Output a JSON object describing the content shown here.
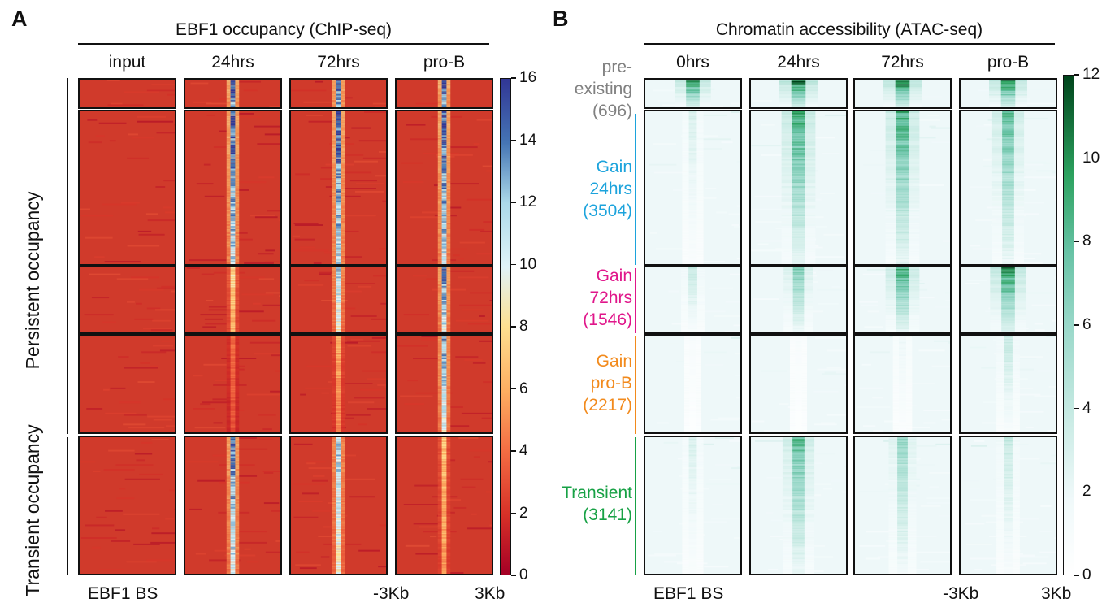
{
  "chart_data": [
    {
      "type": "heatmap",
      "panel": "A",
      "title": "EBF1 occupancy (ChIP-seq)",
      "columns": [
        "input",
        "24hrs",
        "72hrs",
        "pro-B"
      ],
      "row_groups": [
        {
          "name": "Persistent occupancy",
          "n_blocks": 4
        },
        {
          "name": "Transient occupancy",
          "n_blocks": 1
        }
      ],
      "xlabel": "EBF1 BS",
      "x_ticks": [
        "-3Kb",
        "3Kb"
      ],
      "colorbar": {
        "min": 0,
        "max": 16,
        "ticks": [
          0,
          2,
          4,
          6,
          8,
          10,
          12,
          14,
          16
        ],
        "colormap": "RdYlBu_r"
      },
      "approx_center_signal": [
        {
          "block": 1,
          "values": [
            0,
            16,
            16,
            16
          ]
        },
        {
          "block": 2,
          "values": [
            0,
            15,
            15,
            15
          ]
        },
        {
          "block": 3,
          "values": [
            0,
            8,
            12,
            14
          ]
        },
        {
          "block": 4,
          "values": [
            0,
            4,
            6,
            13
          ]
        },
        {
          "block": 5,
          "values": [
            0,
            14,
            12,
            7
          ]
        }
      ]
    },
    {
      "type": "heatmap",
      "panel": "B",
      "title": "Chromatin accessibility (ATAC-seq)",
      "columns": [
        "0hrs",
        "24hrs",
        "72hrs",
        "pro-B"
      ],
      "row_groups": [
        {
          "label": [
            "pre-",
            "existing",
            "(696)"
          ],
          "color": "#808080"
        },
        {
          "label": [
            "Gain",
            "24hrs",
            "(3504)"
          ],
          "color": "#1ca3dc"
        },
        {
          "label": [
            "Gain",
            "72hrs",
            "(1546)"
          ],
          "color": "#e0168a"
        },
        {
          "label": [
            "Gain",
            "pro-B",
            "(2217)"
          ],
          "color": "#f28a1c"
        },
        {
          "label": [
            "Transient",
            "(3141)"
          ],
          "color": "#17a145"
        }
      ],
      "xlabel": "EBF1 BS",
      "x_ticks": [
        "-3Kb",
        "3Kb"
      ],
      "colorbar": {
        "min": 0,
        "max": 12,
        "ticks": [
          0,
          2,
          4,
          6,
          8,
          10,
          12
        ],
        "colormap": "BuGn"
      },
      "approx_center_signal": [
        {
          "block": 1,
          "values": [
            10,
            11,
            11,
            11
          ]
        },
        {
          "block": 2,
          "values": [
            3,
            9,
            9,
            8
          ]
        },
        {
          "block": 3,
          "values": [
            4,
            7,
            9,
            10
          ]
        },
        {
          "block": 4,
          "values": [
            1,
            1,
            2,
            4
          ]
        },
        {
          "block": 5,
          "values": [
            3,
            8,
            6,
            4
          ]
        }
      ]
    }
  ],
  "colors": {
    "chip_background": "#cf3a2c",
    "chip_peak_high": "#2b3f98",
    "atac_background": "#eef8f9",
    "atac_peak_high": "#0b5b2c",
    "axis": "#111111"
  }
}
